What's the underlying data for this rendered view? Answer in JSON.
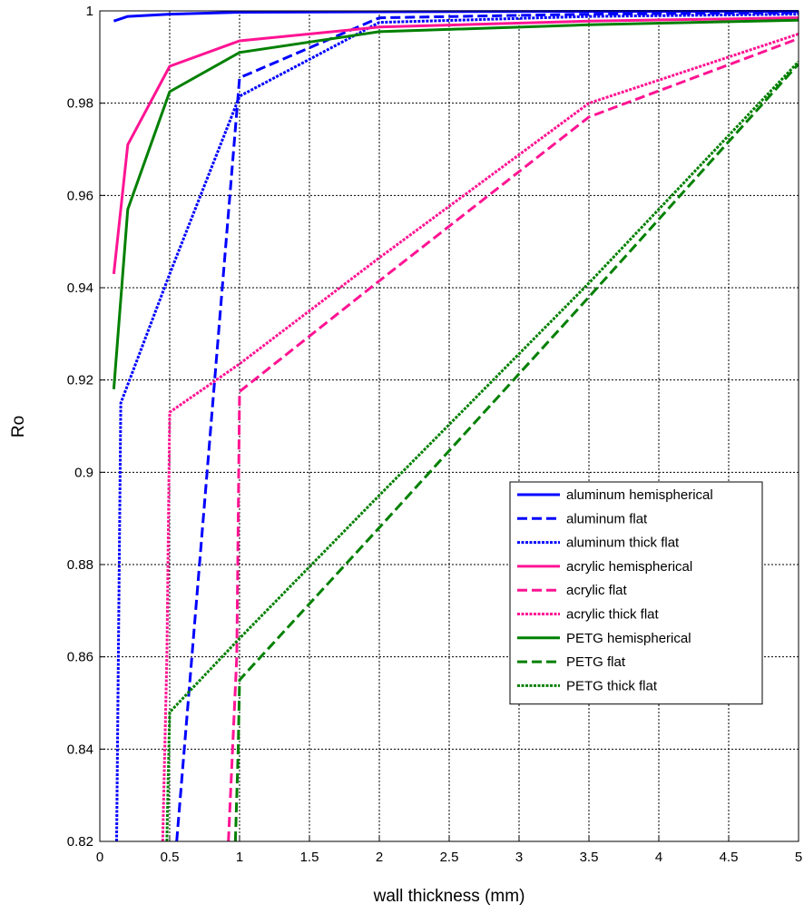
{
  "chart_data": {
    "type": "line",
    "title": "",
    "xlabel": "wall thickness (mm)",
    "ylabel": "Ro",
    "xlim": [
      0,
      5
    ],
    "ylim": [
      0.82,
      1
    ],
    "xticks": [
      "0",
      "0.5",
      "1",
      "1.5",
      "2",
      "2.5",
      "3",
      "3.5",
      "4",
      "4.5",
      "5"
    ],
    "yticks": [
      "0.82",
      "0.84",
      "0.86",
      "0.88",
      "0.9",
      "0.92",
      "0.94",
      "0.96",
      "0.98",
      "1"
    ],
    "grid": true,
    "legend_position": "right",
    "series": [
      {
        "name": "aluminum hemispherical",
        "color": "#0000ff",
        "dash": "solid",
        "x": [
          0.1,
          0.2,
          0.5,
          1,
          2,
          3.5,
          5
        ],
        "y": [
          0.9978,
          0.9988,
          0.9993,
          0.9997,
          0.9998,
          0.9999,
          0.9999
        ]
      },
      {
        "name": "aluminum flat",
        "color": "#0000ff",
        "dash": "dashed",
        "x": [
          0.55,
          1,
          2,
          3.5,
          5
        ],
        "y": [
          0.82,
          0.9855,
          0.9985,
          0.9993,
          0.9996
        ]
      },
      {
        "name": "aluminum thick flat",
        "color": "#0000ff",
        "dash": "dotted",
        "x": [
          0.12,
          0.15,
          0.5,
          1,
          2,
          3.5,
          5
        ],
        "y": [
          0.82,
          0.915,
          0.943,
          0.9815,
          0.9975,
          0.9988,
          0.9993
        ]
      },
      {
        "name": "acrylic hemispherical",
        "color": "#ff1493",
        "dash": "solid",
        "x": [
          0.1,
          0.2,
          0.5,
          1,
          2,
          3.5,
          5
        ],
        "y": [
          0.943,
          0.971,
          0.988,
          0.9935,
          0.9965,
          0.9978,
          0.9985
        ]
      },
      {
        "name": "acrylic flat",
        "color": "#ff1493",
        "dash": "dashed",
        "x": [
          0.92,
          0.98,
          1,
          2,
          3.5,
          5
        ],
        "y": [
          0.82,
          0.86,
          0.9175,
          0.9415,
          0.977,
          0.994
        ]
      },
      {
        "name": "acrylic thick flat",
        "color": "#ff1493",
        "dash": "dotted",
        "x": [
          0.45,
          0.48,
          0.5,
          1,
          2,
          3.5,
          5
        ],
        "y": [
          0.82,
          0.86,
          0.913,
          0.9235,
          0.9465,
          0.98,
          0.995
        ]
      },
      {
        "name": "PETG hemispherical",
        "color": "#008000",
        "dash": "solid",
        "x": [
          0.1,
          0.2,
          0.5,
          1,
          2,
          3.5,
          5
        ],
        "y": [
          0.918,
          0.957,
          0.9825,
          0.991,
          0.9955,
          0.997,
          0.998
        ]
      },
      {
        "name": "PETG flat",
        "color": "#008000",
        "dash": "dashed",
        "x": [
          0.97,
          0.99,
          1,
          2,
          3.5,
          5
        ],
        "y": [
          0.82,
          0.84,
          0.855,
          0.888,
          0.938,
          0.9885
        ]
      },
      {
        "name": "PETG thick flat",
        "color": "#008000",
        "dash": "dotted",
        "x": [
          0.48,
          0.49,
          0.5,
          1,
          2,
          3.5,
          5
        ],
        "y": [
          0.82,
          0.835,
          0.848,
          0.864,
          0.895,
          0.941,
          0.989
        ]
      }
    ]
  }
}
